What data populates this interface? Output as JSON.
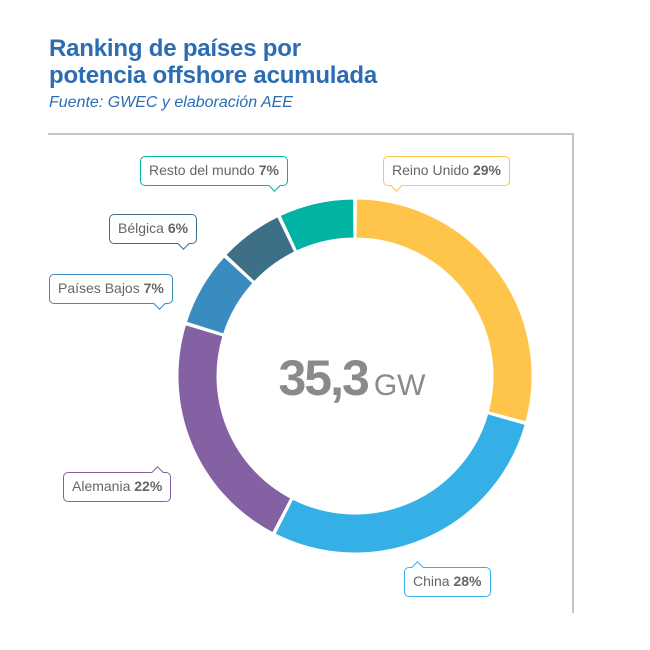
{
  "title_lines": [
    "Ranking de países por",
    "potencia offshore acumulada"
  ],
  "subtitle": "Fuente: GWEC y elaboración AEE",
  "center": {
    "value": "35,3",
    "unit": "GW"
  },
  "chart_data": {
    "type": "pie",
    "title": "Ranking de países por potencia offshore acumulada",
    "total_label": "35,3 GW",
    "slices": [
      {
        "name": "Reino Unido",
        "value": 29,
        "label": "29%",
        "color": "#ffc54a"
      },
      {
        "name": "China",
        "value": 28,
        "label": "28%",
        "color": "#35b0e7"
      },
      {
        "name": "Alemania",
        "value": 22,
        "label": "22%",
        "color": "#8361a3"
      },
      {
        "name": "Países Bajos",
        "value": 7,
        "label": "7%",
        "color": "#3a8bbf"
      },
      {
        "name": "Bélgica",
        "value": 6,
        "label": "6%",
        "color": "#3d6f86"
      },
      {
        "name": "Resto del mundo",
        "value": 7,
        "label": "7%",
        "color": "#00b3a2"
      }
    ]
  }
}
